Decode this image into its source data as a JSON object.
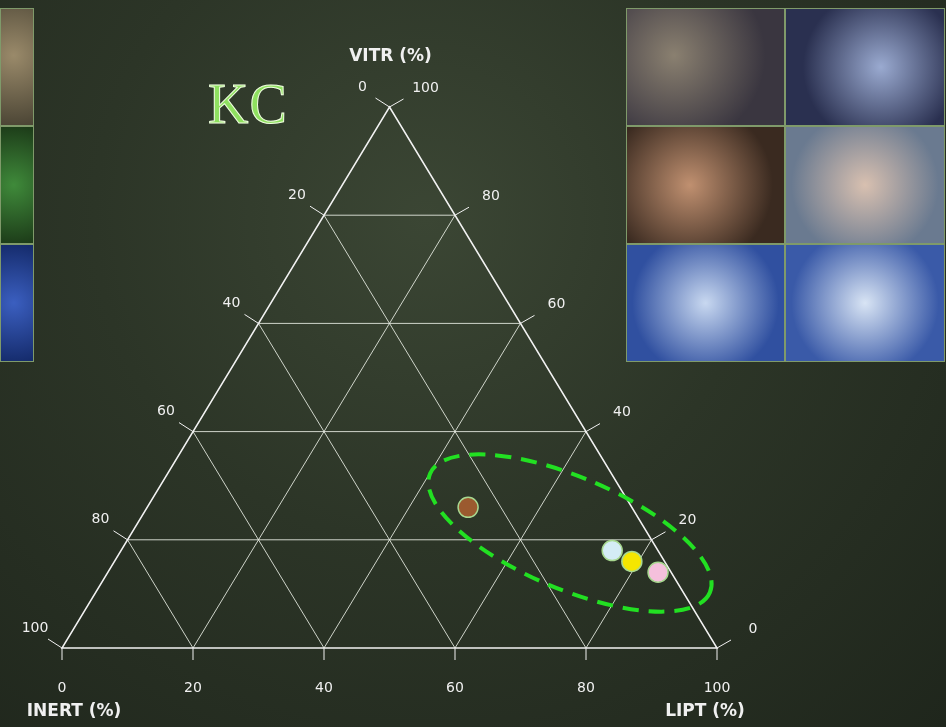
{
  "chart_data": {
    "type": "ternary",
    "title": "KC",
    "axes": [
      {
        "label": "VITR (%)",
        "lim": [
          0,
          100
        ],
        "ticks": [
          0,
          20,
          40,
          60,
          80,
          100
        ]
      },
      {
        "label": "LIPT (%)",
        "lim": [
          0,
          100
        ],
        "ticks": [
          0,
          20,
          40,
          60,
          80,
          100
        ]
      },
      {
        "label": "INERT (%)",
        "lim": [
          0,
          100
        ],
        "ticks": [
          0,
          20,
          40,
          60,
          80,
          100
        ]
      }
    ],
    "values": [
      [
        26,
        49,
        25
      ],
      [
        18,
        75,
        7
      ],
      [
        16,
        79,
        5
      ],
      [
        14,
        84,
        2
      ]
    ],
    "colors": [
      "#9b5a2f",
      "#d4ecf5",
      "#f5e600",
      "#f5c0dc"
    ],
    "grid": true
  }
}
